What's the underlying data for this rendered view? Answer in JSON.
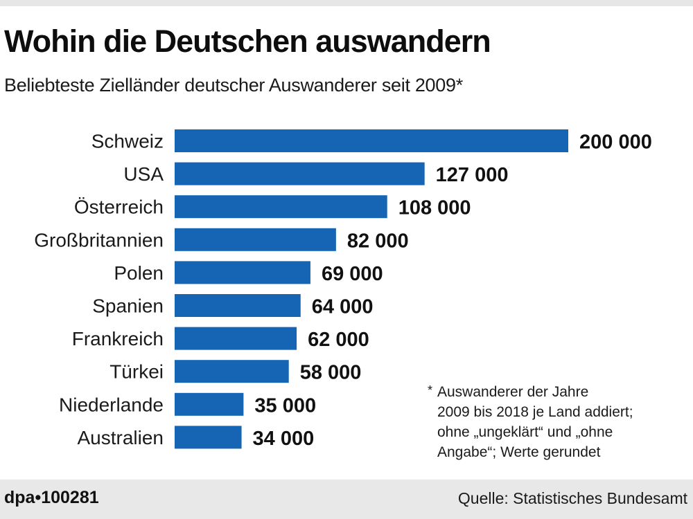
{
  "header": {
    "title": "Wohin die Deutschen auswandern",
    "subtitle": "Beliebteste Zielländer deutscher Auswanderer seit 2009*"
  },
  "chart_data": {
    "type": "bar",
    "orientation": "horizontal",
    "title": "Wohin die Deutschen auswandern",
    "subtitle": "Beliebteste Zielländer deutscher Auswanderer seit 2009*",
    "xlabel": "",
    "ylabel": "",
    "categories": [
      "Schweiz",
      "USA",
      "Österreich",
      "Großbritannien",
      "Polen",
      "Spanien",
      "Frankreich",
      "Türkei",
      "Niederlande",
      "Australien"
    ],
    "values": [
      200000,
      127000,
      108000,
      82000,
      69000,
      64000,
      62000,
      58000,
      35000,
      34000
    ],
    "value_labels": [
      "200 000",
      "127 000",
      "108 000",
      "82 000",
      "69 000",
      "64 000",
      "62 000",
      "58 000",
      "35 000",
      "34 000"
    ],
    "xlim": [
      0,
      200000
    ],
    "grid": false,
    "legend": "none",
    "bar_color": "#1565b4"
  },
  "footnote": {
    "marker": "*",
    "text": "Auswanderer der Jahre\n2009 bis 2018 je Land addiert;\nohne „ungeklärt“ und „ohne\nAngabe“; Werte gerundet"
  },
  "footer": {
    "id": "dpa•100281",
    "source": "Quelle: Statistisches Bundesamt"
  }
}
